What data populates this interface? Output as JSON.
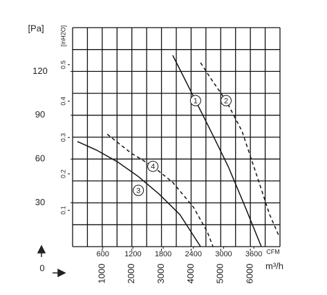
{
  "chart_data": {
    "type": "line",
    "y_label": "[Pa]",
    "y2_label": "[inH2O]",
    "x_label": "m³/h",
    "x2_label": "CFM",
    "origin_label": "0",
    "xlim": [
      0,
      7000
    ],
    "xticks": [
      1000,
      2000,
      3000,
      4000,
      5000,
      6000
    ],
    "x2lim": [
      0,
      4120
    ],
    "x2ticks": [
      600,
      1200,
      1800,
      2400,
      3000,
      3600
    ],
    "ylim": [
      0,
      150
    ],
    "yticks": [
      30,
      60,
      90,
      120
    ],
    "y2lim": [
      0,
      0.602
    ],
    "y2ticks": [
      0.1,
      0.2,
      0.3,
      0.4,
      0.5
    ],
    "grid": true,
    "color": "#111",
    "series": [
      {
        "name": "1",
        "dash": false,
        "x": [
          3380,
          3730,
          4150,
          4670,
          5250,
          5830,
          6370
        ],
        "values": [
          131,
          117,
          100,
          79,
          55,
          27,
          0
        ]
      },
      {
        "name": "2",
        "dash": true,
        "x": [
          4320,
          4670,
          5180,
          5720,
          6180,
          6650,
          6950
        ],
        "values": [
          126,
          115,
          100,
          79,
          51,
          22,
          8
        ]
      },
      {
        "name": "3",
        "dash": false,
        "x": [
          160,
          820,
          1520,
          2220,
          2920,
          3620,
          4320
        ],
        "values": [
          72,
          66,
          58,
          48,
          36,
          22,
          0
        ]
      },
      {
        "name": "4",
        "dash": true,
        "x": [
          1170,
          1980,
          2710,
          3380,
          4080,
          4550,
          4740
        ],
        "values": [
          77,
          64,
          55,
          44,
          27,
          10,
          0
        ]
      }
    ]
  }
}
